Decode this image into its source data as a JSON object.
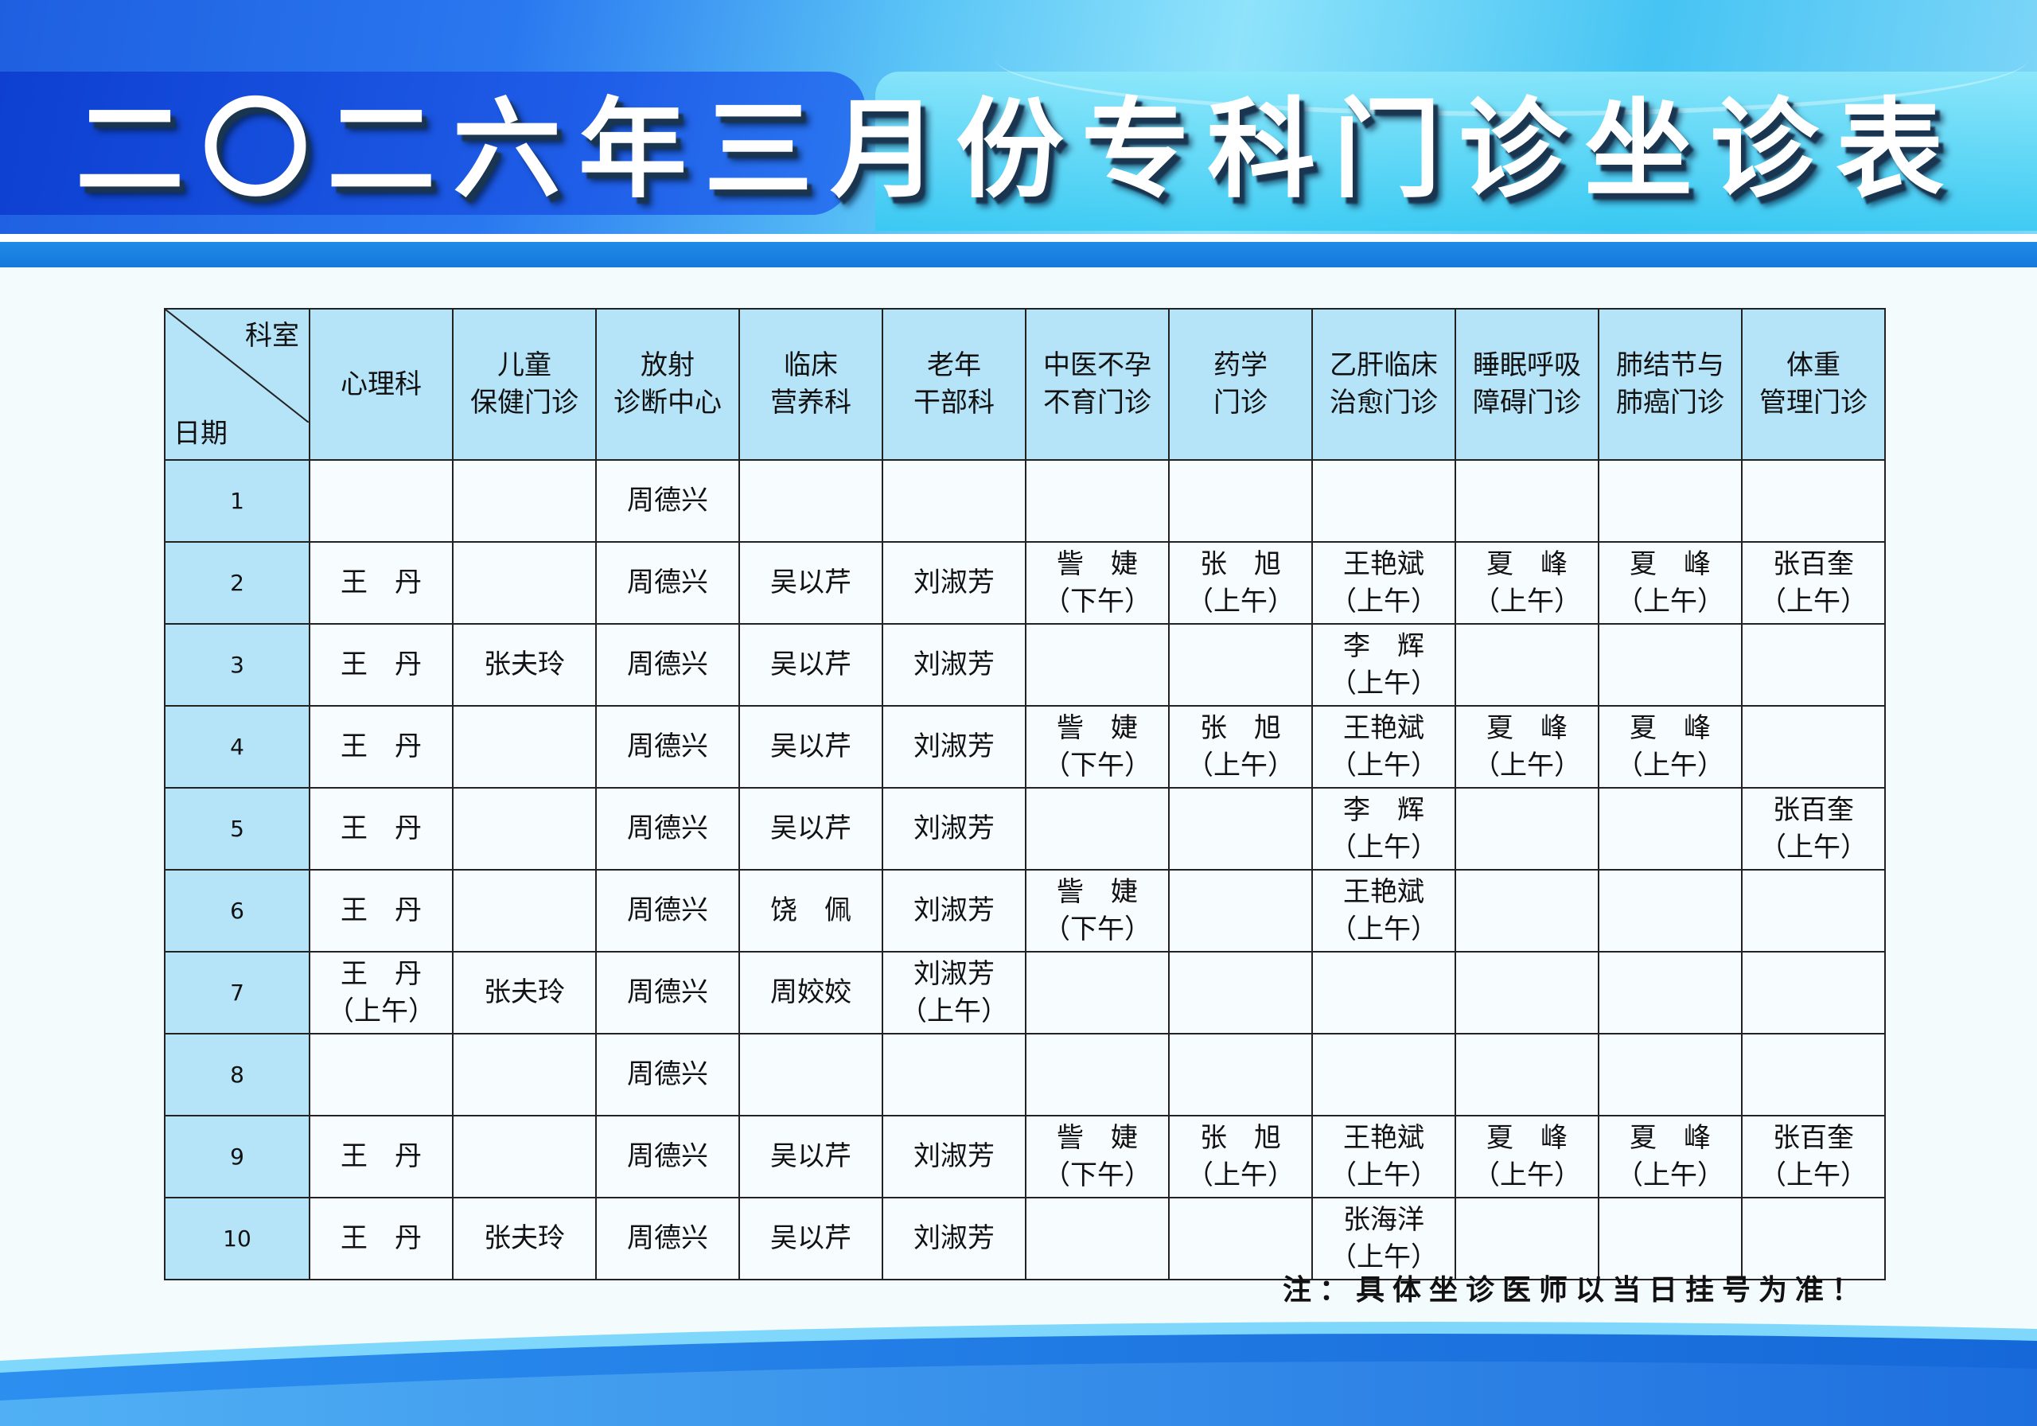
{
  "title": "二〇二六年三月份专科门诊坐诊表",
  "colors": {
    "header_bg": "#b5e4f8",
    "banner_blue": "#1e5fe0",
    "band_blue": "#1679dc"
  },
  "table": {
    "corner_top": "科室",
    "corner_bottom": "日期",
    "columns": [
      "心理科",
      "儿童\n保健门诊",
      "放射\n诊断中心",
      "临床\n营养科",
      "老年\n干部科",
      "中医不孕\n不育门诊",
      "药学\n门诊",
      "乙肝临床\n治愈门诊",
      "睡眠呼吸\n障碍门诊",
      "肺结节与\n肺癌门诊",
      "体重\n管理门诊"
    ],
    "rows": [
      {
        "day": "1",
        "cells": [
          "",
          "",
          "周德兴",
          "",
          "",
          "",
          "",
          "",
          "",
          "",
          ""
        ]
      },
      {
        "day": "2",
        "cells": [
          "王　丹",
          "",
          "周德兴",
          "吴以芹",
          "刘淑芳",
          "訾　婕\n（下午）",
          "张　旭\n（上午）",
          "王艳斌\n（上午）",
          "夏　峰\n（上午）",
          "夏　峰\n（上午）",
          "张百奎\n（上午）"
        ]
      },
      {
        "day": "3",
        "cells": [
          "王　丹",
          "张夫玲",
          "周德兴",
          "吴以芹",
          "刘淑芳",
          "",
          "",
          "李　辉\n（上午）",
          "",
          "",
          ""
        ]
      },
      {
        "day": "4",
        "cells": [
          "王　丹",
          "",
          "周德兴",
          "吴以芹",
          "刘淑芳",
          "訾　婕\n（下午）",
          "张　旭\n（上午）",
          "王艳斌\n（上午）",
          "夏　峰\n（上午）",
          "夏　峰\n（上午）",
          ""
        ]
      },
      {
        "day": "5",
        "cells": [
          "王　丹",
          "",
          "周德兴",
          "吴以芹",
          "刘淑芳",
          "",
          "",
          "李　辉\n（上午）",
          "",
          "",
          "张百奎\n（上午）"
        ]
      },
      {
        "day": "6",
        "cells": [
          "王　丹",
          "",
          "周德兴",
          "饶　佩",
          "刘淑芳",
          "訾　婕\n（下午）",
          "",
          "王艳斌\n（上午）",
          "",
          "",
          ""
        ]
      },
      {
        "day": "7",
        "cells": [
          "王　丹\n（上午）",
          "张夫玲",
          "周德兴",
          "周姣姣",
          "刘淑芳\n（上午）",
          "",
          "",
          "",
          "",
          "",
          ""
        ]
      },
      {
        "day": "8",
        "cells": [
          "",
          "",
          "周德兴",
          "",
          "",
          "",
          "",
          "",
          "",
          "",
          ""
        ]
      },
      {
        "day": "9",
        "cells": [
          "王　丹",
          "",
          "周德兴",
          "吴以芹",
          "刘淑芳",
          "訾　婕\n（下午）",
          "张　旭\n（上午）",
          "王艳斌\n（上午）",
          "夏　峰\n（上午）",
          "夏　峰\n（上午）",
          "张百奎\n（上午）"
        ]
      },
      {
        "day": "10",
        "cells": [
          "王　丹",
          "张夫玲",
          "周德兴",
          "吴以芹",
          "刘淑芳",
          "",
          "",
          "张海洋\n（上午）",
          "",
          "",
          ""
        ]
      }
    ]
  },
  "note": "注：具体坐诊医师以当日挂号为准！"
}
